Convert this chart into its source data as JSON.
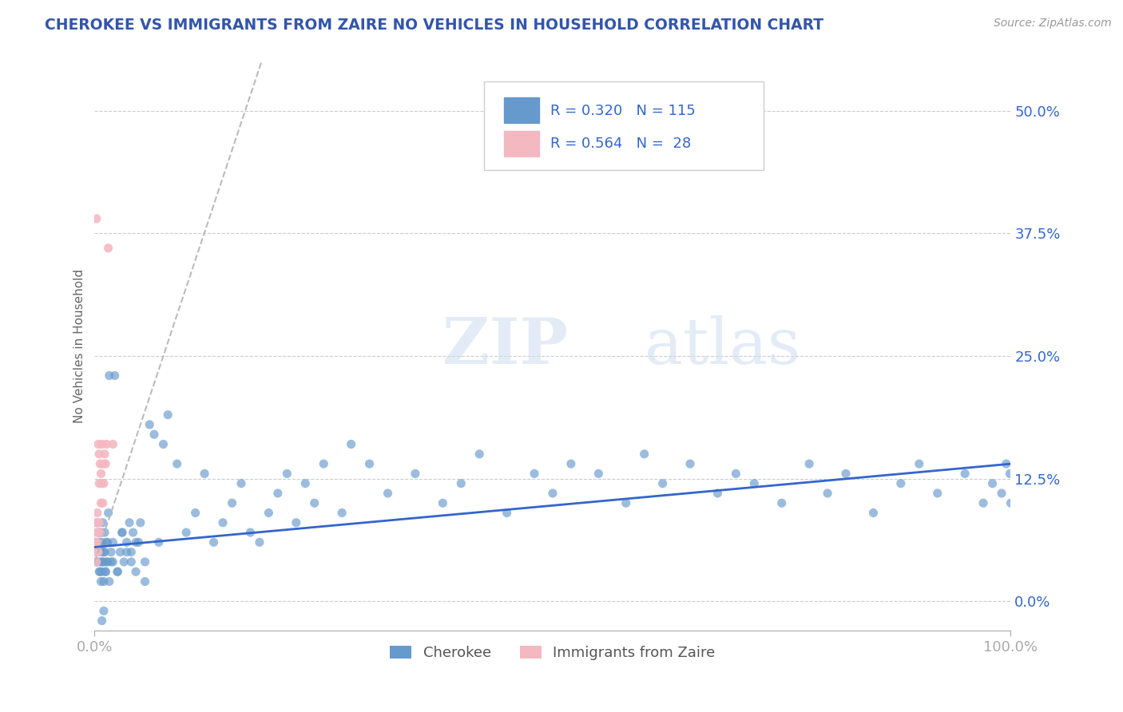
{
  "title": "CHEROKEE VS IMMIGRANTS FROM ZAIRE NO VEHICLES IN HOUSEHOLD CORRELATION CHART",
  "source_text": "Source: ZipAtlas.com",
  "ylabel": "No Vehicles in Household",
  "watermark_zip": "ZIP",
  "watermark_atlas": "atlas",
  "xlim": [
    0.0,
    1.0
  ],
  "ylim": [
    -0.03,
    0.55
  ],
  "yticks": [
    0.0,
    0.125,
    0.25,
    0.375,
    0.5
  ],
  "ytick_labels": [
    "0.0%",
    "12.5%",
    "25.0%",
    "37.5%",
    "50.0%"
  ],
  "xticks": [
    0.0,
    1.0
  ],
  "xtick_labels": [
    "0.0%",
    "100.0%"
  ],
  "legend_text_color": "#3366cc",
  "cherokee_color": "#6699cc",
  "zaire_color": "#f4b8c1",
  "cherokee_line_color": "#3366cc",
  "zaire_line_color": "#bbbbbb",
  "title_color": "#3355aa",
  "axis_color": "#aaaaaa",
  "grid_color": "#cccccc",
  "background_color": "#ffffff",
  "cherokee_slope": 0.085,
  "cherokee_intercept": 0.055,
  "zaire_slope": 2.8,
  "zaire_intercept": 0.04,
  "cherokee_x": [
    0.001,
    0.002,
    0.003,
    0.003,
    0.004,
    0.005,
    0.005,
    0.006,
    0.006,
    0.007,
    0.007,
    0.008,
    0.008,
    0.009,
    0.009,
    0.01,
    0.01,
    0.011,
    0.012,
    0.013,
    0.014,
    0.015,
    0.016,
    0.018,
    0.02,
    0.022,
    0.025,
    0.028,
    0.03,
    0.032,
    0.035,
    0.038,
    0.04,
    0.042,
    0.045,
    0.048,
    0.05,
    0.055,
    0.06,
    0.065,
    0.07,
    0.075,
    0.08,
    0.09,
    0.1,
    0.11,
    0.12,
    0.13,
    0.14,
    0.15,
    0.16,
    0.17,
    0.18,
    0.19,
    0.2,
    0.21,
    0.22,
    0.23,
    0.24,
    0.25,
    0.27,
    0.28,
    0.3,
    0.32,
    0.35,
    0.38,
    0.4,
    0.42,
    0.45,
    0.48,
    0.5,
    0.52,
    0.55,
    0.58,
    0.6,
    0.62,
    0.65,
    0.68,
    0.7,
    0.72,
    0.75,
    0.78,
    0.8,
    0.82,
    0.85,
    0.88,
    0.9,
    0.92,
    0.95,
    0.97,
    0.98,
    0.99,
    0.995,
    0.999,
    1.0,
    0.003,
    0.004,
    0.006,
    0.007,
    0.008,
    0.009,
    0.01,
    0.011,
    0.012,
    0.013,
    0.014,
    0.016,
    0.018,
    0.02,
    0.025,
    0.03,
    0.035,
    0.04,
    0.045,
    0.055
  ],
  "cherokee_y": [
    0.06,
    0.04,
    0.08,
    0.05,
    0.07,
    0.03,
    0.06,
    0.04,
    0.07,
    0.02,
    0.05,
    0.03,
    0.06,
    0.04,
    0.08,
    0.02,
    0.05,
    0.07,
    0.03,
    0.06,
    0.04,
    0.09,
    0.23,
    0.04,
    0.06,
    0.23,
    0.03,
    0.05,
    0.07,
    0.04,
    0.06,
    0.08,
    0.05,
    0.07,
    0.03,
    0.06,
    0.08,
    0.04,
    0.18,
    0.17,
    0.06,
    0.16,
    0.19,
    0.14,
    0.07,
    0.09,
    0.13,
    0.06,
    0.08,
    0.1,
    0.12,
    0.07,
    0.06,
    0.09,
    0.11,
    0.13,
    0.08,
    0.12,
    0.1,
    0.14,
    0.09,
    0.16,
    0.14,
    0.11,
    0.13,
    0.1,
    0.12,
    0.15,
    0.09,
    0.13,
    0.11,
    0.14,
    0.13,
    0.1,
    0.15,
    0.12,
    0.14,
    0.11,
    0.13,
    0.12,
    0.1,
    0.14,
    0.11,
    0.13,
    0.09,
    0.12,
    0.14,
    0.11,
    0.13,
    0.1,
    0.12,
    0.11,
    0.14,
    0.13,
    0.1,
    0.04,
    0.06,
    0.03,
    0.07,
    -0.02,
    0.04,
    -0.01,
    0.05,
    0.03,
    0.04,
    0.06,
    0.02,
    0.05,
    0.04,
    0.03,
    0.07,
    0.05,
    0.04,
    0.06,
    0.02
  ],
  "zaire_x": [
    0.001,
    0.001,
    0.002,
    0.002,
    0.002,
    0.003,
    0.003,
    0.003,
    0.004,
    0.004,
    0.004,
    0.005,
    0.005,
    0.005,
    0.006,
    0.006,
    0.007,
    0.007,
    0.008,
    0.008,
    0.009,
    0.009,
    0.01,
    0.011,
    0.012,
    0.013,
    0.015,
    0.02
  ],
  "zaire_y": [
    0.06,
    0.08,
    0.04,
    0.07,
    0.05,
    0.08,
    0.06,
    0.09,
    0.05,
    0.07,
    0.16,
    0.08,
    0.12,
    0.15,
    0.07,
    0.14,
    0.1,
    0.13,
    0.12,
    0.16,
    0.1,
    0.14,
    0.12,
    0.15,
    0.14,
    0.16,
    0.36,
    0.16
  ]
}
